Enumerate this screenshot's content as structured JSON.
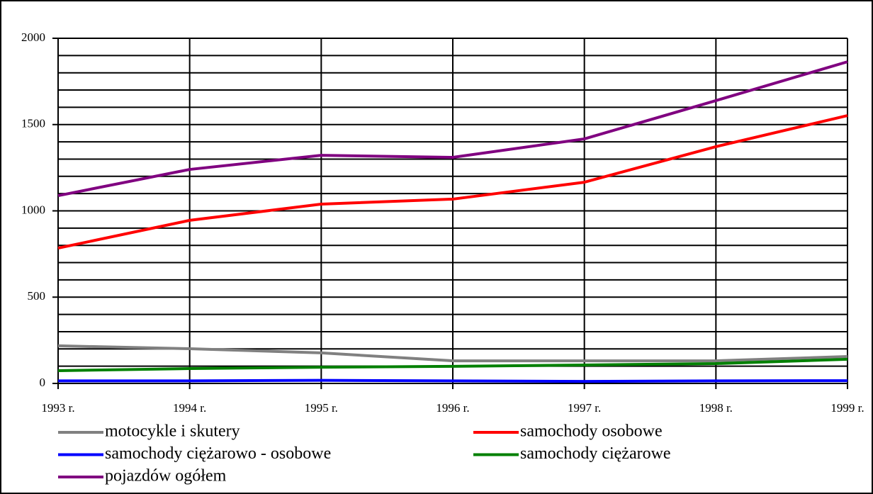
{
  "chart_data": {
    "type": "line",
    "categories": [
      "1993 r.",
      "1994 r.",
      "1995 r.",
      "1996 r.",
      "1997 r.",
      "1998 r.",
      "1999 r."
    ],
    "series": [
      {
        "name": "motocykle i skutery",
        "color": "#808080",
        "values": [
          218,
          201,
          177,
          131,
          131,
          131,
          156
        ]
      },
      {
        "name": "samochody osobowe",
        "color": "#ff0000",
        "values": [
          784,
          945,
          1039,
          1068,
          1166,
          1372,
          1552
        ]
      },
      {
        "name": "samochody ciężarowo - osobowe",
        "color": "#0000ff",
        "values": [
          15,
          15,
          18,
          15,
          12,
          15,
          16
        ]
      },
      {
        "name": "samochody ciężarowe",
        "color": "#008000",
        "values": [
          74,
          86,
          94,
          99,
          107,
          115,
          140
        ]
      },
      {
        "name": "pojazdów ogółem",
        "color": "#800080",
        "values": [
          1088,
          1240,
          1322,
          1310,
          1417,
          1639,
          1864
        ]
      }
    ],
    "ylim": [
      0,
      2000
    ],
    "yticks": [
      0,
      500,
      1000,
      1500,
      2000
    ],
    "minor_yticks": [
      100,
      200,
      300,
      400,
      600,
      700,
      800,
      900,
      1100,
      1200,
      1300,
      1400,
      1600,
      1700,
      1800,
      1900
    ],
    "grid": true
  }
}
